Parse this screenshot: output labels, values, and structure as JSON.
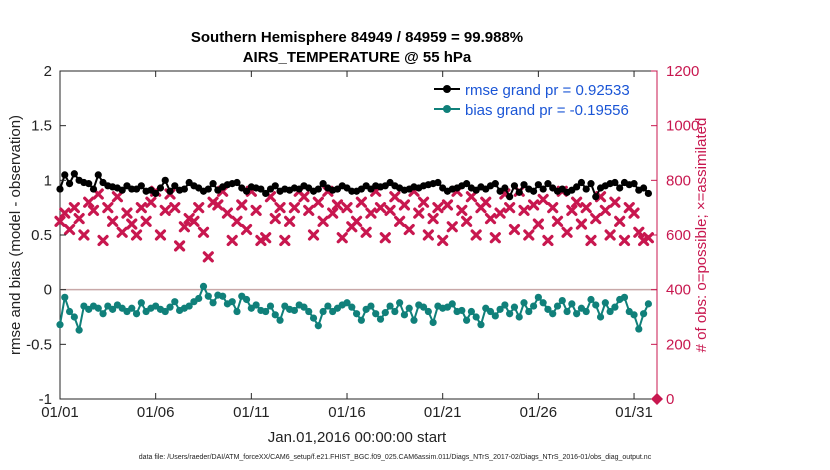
{
  "chart_data": {
    "type": "line",
    "title": "Southern Hemisphere 84949 / 84959 = 99.988%",
    "subtitle": "AIRS_TEMPERATURE @ 55 hPa",
    "xlabel": "Jan.01,2016 00:00:00 start",
    "ylabel_left": "rmse and bias (model - observation)",
    "ylabel_right": "# of obs: o=possible; ×=assimilated",
    "xlim": [
      1,
      32.2
    ],
    "ylim_left": [
      -1,
      2
    ],
    "ylim_right": [
      0,
      1200
    ],
    "x_ticks": [
      1,
      6,
      11,
      16,
      21,
      26,
      31
    ],
    "x_tick_labels": [
      "01/01",
      "01/06",
      "01/11",
      "01/16",
      "01/21",
      "01/26",
      "01/31"
    ],
    "y_ticks_left": [
      "-1",
      "-0.5",
      "0",
      "0.5",
      "1",
      "1.5",
      "2"
    ],
    "y_ticks_right": [
      "0",
      "200",
      "400",
      "600",
      "800",
      "1000",
      "1200"
    ],
    "zero_line": 0,
    "colors": {
      "rmse": "#000000",
      "bias": "#10807a",
      "obs": "#c8174f",
      "legend_text": "#1a55d6",
      "zero_line": "#c8a8a8"
    },
    "legend": [
      {
        "label": "rmse grand pr = 0.92533",
        "series": "rmse"
      },
      {
        "label": "bias grand pr = -0.19556",
        "series": "bias"
      }
    ],
    "footnote": "data file: /Users/raeder/DAI/ATM_forceXX/CAM6_setup/f.e21.FHIST_BGC.f09_025.CAM6assim.011/Diags_NTrS_2017-02/Diags_NTrS_2016-01/obs_diag_output.nc",
    "series": [
      {
        "name": "rmse",
        "axis": "left",
        "x_start": 1.0,
        "x_step": 0.25,
        "values": [
          0.92,
          1.05,
          0.97,
          1.06,
          1.0,
          0.98,
          0.97,
          0.92,
          1.05,
          0.98,
          0.95,
          0.94,
          0.93,
          0.91,
          0.95,
          0.92,
          0.92,
          0.95,
          0.9,
          0.91,
          0.88,
          0.93,
          1.0,
          0.9,
          0.95,
          0.91,
          0.92,
          0.98,
          0.95,
          0.93,
          0.9,
          0.92,
          0.97,
          0.91,
          0.94,
          0.96,
          0.97,
          0.98,
          0.93,
          0.9,
          0.94,
          0.93,
          0.92,
          0.88,
          0.92,
          0.95,
          0.9,
          0.92,
          0.91,
          0.93,
          0.92,
          0.95,
          0.93,
          0.9,
          0.92,
          0.97,
          0.93,
          0.91,
          0.92,
          0.95,
          0.93,
          0.9,
          0.9,
          0.92,
          0.95,
          0.92,
          0.95,
          0.94,
          0.95,
          0.98,
          0.95,
          0.93,
          0.91,
          0.92,
          0.94,
          0.93,
          0.95,
          0.96,
          0.97,
          0.98,
          0.93,
          0.9,
          0.92,
          0.93,
          0.95,
          0.97,
          0.93,
          0.91,
          0.94,
          0.92,
          0.95,
          0.97,
          0.9,
          0.93,
          0.85,
          0.95,
          0.89,
          0.96,
          0.92,
          0.9,
          0.96,
          0.92,
          0.97,
          0.93,
          0.9,
          0.92,
          0.89,
          0.91,
          0.94,
          0.98,
          0.92,
          0.97,
          0.85,
          0.93,
          0.95,
          0.97,
          0.98,
          0.93,
          0.98,
          0.96,
          0.97,
          0.91,
          0.93,
          0.88
        ]
      },
      {
        "name": "bias",
        "axis": "left",
        "x_start": 1.0,
        "x_step": 0.25,
        "values": [
          -0.32,
          -0.07,
          -0.2,
          -0.25,
          -0.37,
          -0.15,
          -0.18,
          -0.15,
          -0.17,
          -0.22,
          -0.15,
          -0.18,
          -0.14,
          -0.17,
          -0.2,
          -0.17,
          -0.22,
          -0.12,
          -0.2,
          -0.17,
          -0.15,
          -0.18,
          -0.2,
          -0.16,
          -0.11,
          -0.19,
          -0.17,
          -0.15,
          -0.11,
          -0.08,
          0.03,
          -0.06,
          -0.12,
          -0.05,
          -0.06,
          -0.13,
          -0.11,
          -0.2,
          -0.06,
          -0.09,
          -0.17,
          -0.14,
          -0.19,
          -0.2,
          -0.15,
          -0.23,
          -0.28,
          -0.15,
          -0.18,
          -0.19,
          -0.14,
          -0.16,
          -0.2,
          -0.26,
          -0.33,
          -0.2,
          -0.15,
          -0.2,
          -0.17,
          -0.14,
          -0.12,
          -0.16,
          -0.22,
          -0.28,
          -0.18,
          -0.15,
          -0.22,
          -0.27,
          -0.21,
          -0.15,
          -0.2,
          -0.12,
          -0.23,
          -0.17,
          -0.28,
          -0.14,
          -0.16,
          -0.2,
          -0.3,
          -0.15,
          -0.17,
          -0.16,
          -0.13,
          -0.2,
          -0.19,
          -0.28,
          -0.2,
          -0.25,
          -0.32,
          -0.17,
          -0.2,
          -0.24,
          -0.18,
          -0.14,
          -0.22,
          -0.16,
          -0.25,
          -0.12,
          -0.2,
          -0.15,
          -0.07,
          -0.12,
          -0.18,
          -0.22,
          -0.15,
          -0.1,
          -0.2,
          -0.13,
          -0.22,
          -0.17,
          -0.2,
          -0.09,
          -0.14,
          -0.25,
          -0.12,
          -0.2,
          -0.16,
          -0.09,
          -0.07,
          -0.2,
          -0.23,
          -0.36,
          -0.22,
          -0.13
        ]
      },
      {
        "name": "assimilated",
        "axis": "right",
        "x_start": 1.0,
        "x_step": 0.25,
        "values": [
          650,
          680,
          620,
          700,
          660,
          600,
          720,
          690,
          750,
          580,
          700,
          650,
          740,
          610,
          680,
          640,
          600,
          700,
          650,
          720,
          760,
          600,
          690,
          750,
          700,
          560,
          630,
          660,
          650,
          700,
          610,
          520,
          720,
          710,
          760,
          680,
          580,
          650,
          710,
          620,
          760,
          690,
          580,
          590,
          740,
          660,
          700,
          580,
          650,
          700,
          760,
          740,
          690,
          600,
          720,
          650,
          760,
          680,
          710,
          590,
          700,
          630,
          650,
          720,
          610,
          680,
          760,
          700,
          590,
          690,
          740,
          650,
          710,
          620,
          760,
          680,
          720,
          600,
          660,
          700,
          580,
          710,
          630,
          760,
          690,
          650,
          740,
          600,
          700,
          720,
          660,
          590,
          680,
          750,
          700,
          620,
          760,
          690,
          600,
          710,
          640,
          730,
          580,
          700,
          650,
          760,
          610,
          690,
          720,
          640,
          700,
          580,
          660,
          740,
          690,
          600,
          720,
          650,
          580,
          700,
          680,
          610,
          580,
          590
        ]
      }
    ]
  }
}
